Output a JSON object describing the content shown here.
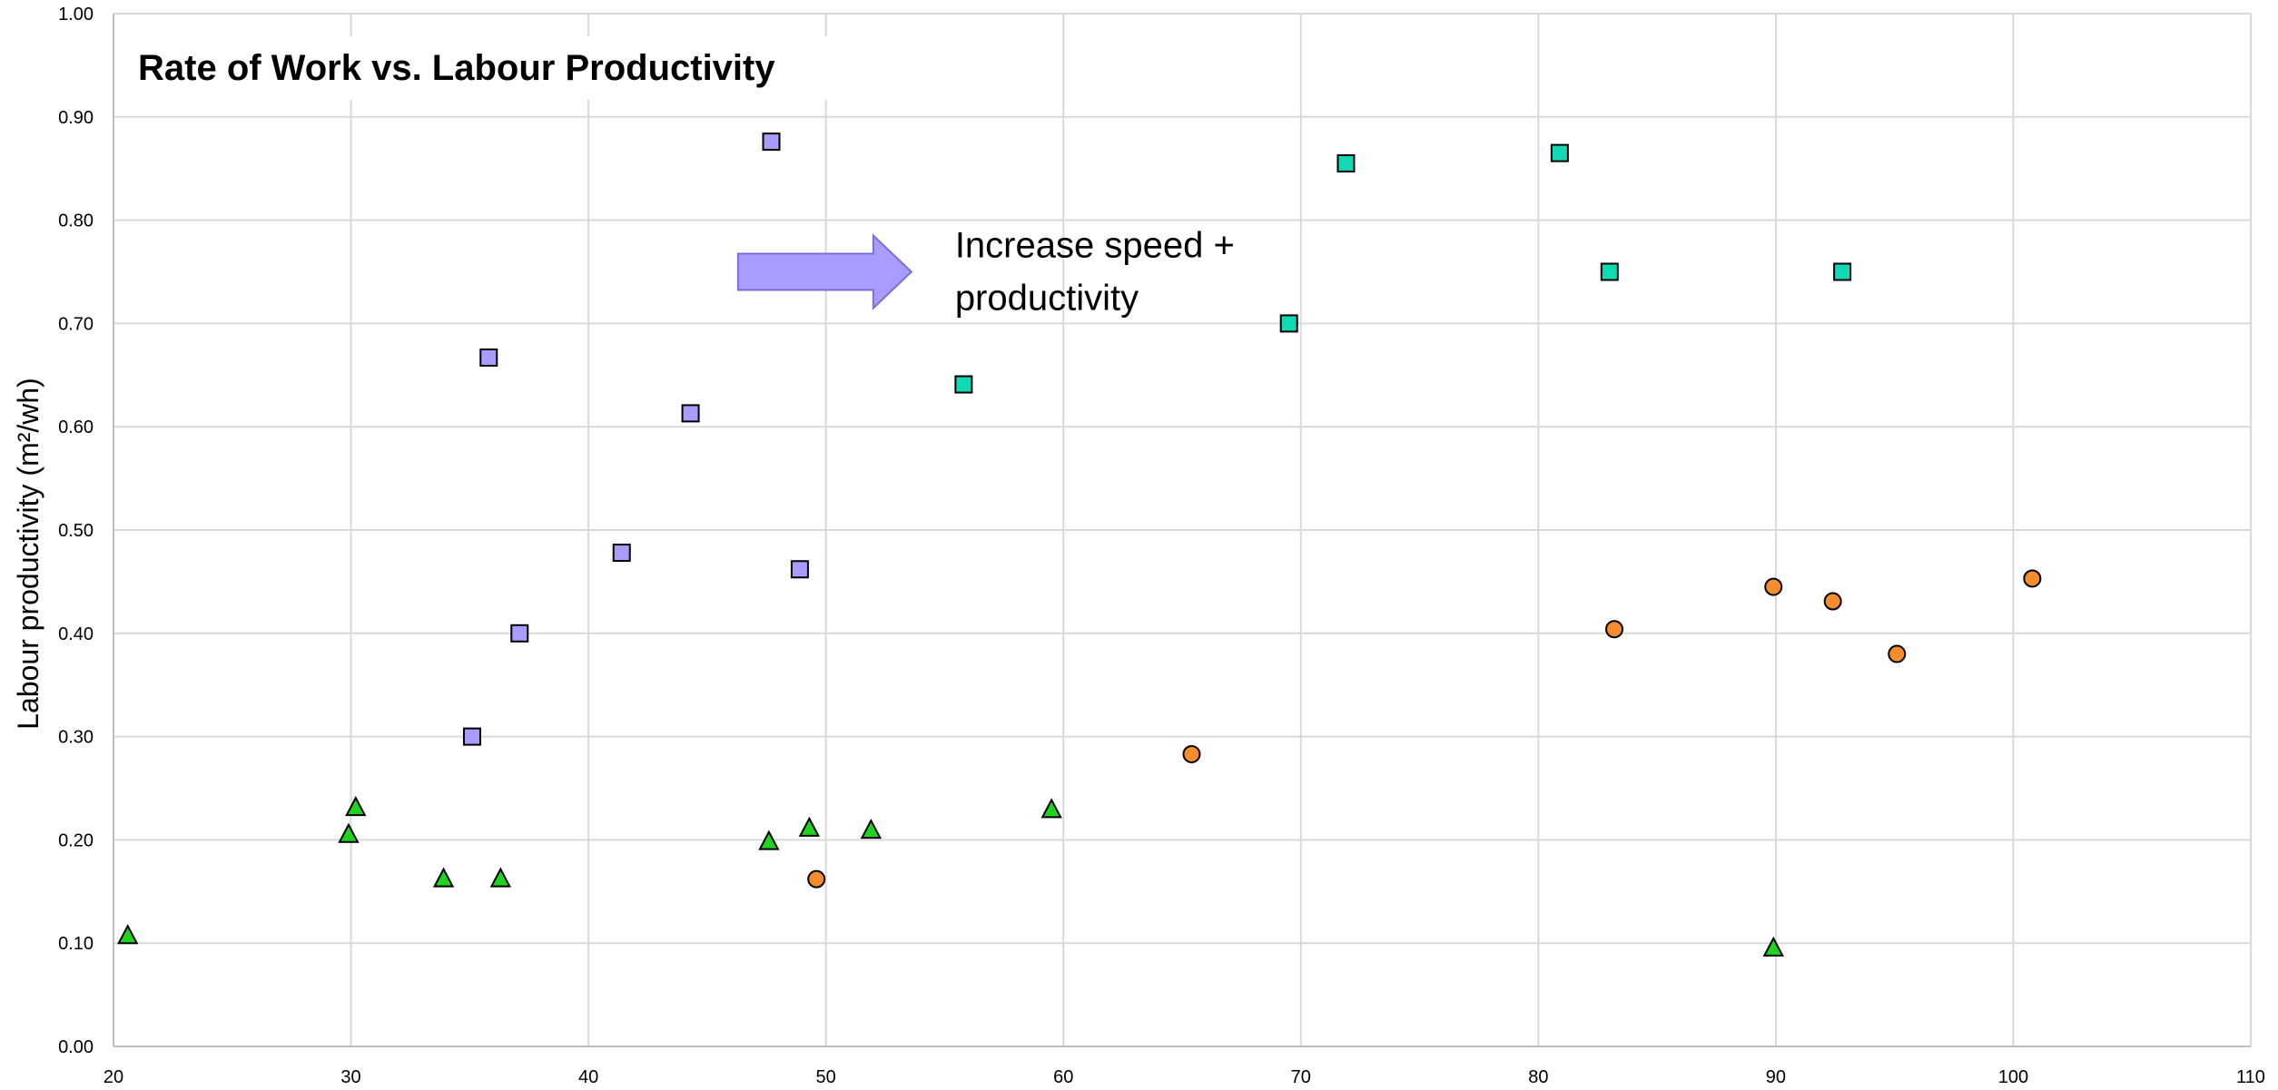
{
  "chart_data": {
    "type": "scatter",
    "title": "Rate of Work vs. Labour Productivity",
    "xlabel": "",
    "ylabel": "Labour productivity (m²/wh)",
    "xlim": [
      20,
      110
    ],
    "ylim": [
      0,
      1.0
    ],
    "x_ticks": [
      "20",
      "30",
      "40",
      "50",
      "60",
      "70",
      "80",
      "90",
      "100",
      "110"
    ],
    "y_ticks": [
      "0.00",
      "0.10",
      "0.20",
      "0.30",
      "0.40",
      "0.50",
      "0.60",
      "0.70",
      "0.80",
      "0.90",
      "1.00"
    ],
    "grid": true,
    "legend": "none",
    "annotations": [
      {
        "text_lines": [
          "Increase speed +",
          "productivity"
        ],
        "shape": "right-arrow",
        "arrow_color": "#a99cff",
        "arrow_x": [
          46.3,
          53.6
        ],
        "arrow_y": 0.75
      }
    ],
    "series": [
      {
        "marker": "square",
        "color": "#a99cff",
        "points": [
          [
            35.1,
            0.3
          ],
          [
            35.8,
            0.667
          ],
          [
            37.1,
            0.4
          ],
          [
            41.4,
            0.478
          ],
          [
            44.3,
            0.613
          ],
          [
            47.7,
            0.876
          ],
          [
            48.9,
            0.462
          ]
        ]
      },
      {
        "marker": "square",
        "color": "#10d9b4",
        "points": [
          [
            55.8,
            0.641
          ],
          [
            69.5,
            0.7
          ],
          [
            71.9,
            0.855
          ],
          [
            80.9,
            0.865
          ],
          [
            83.0,
            0.75
          ],
          [
            92.8,
            0.75
          ]
        ]
      },
      {
        "marker": "circle",
        "color": "#f58d2c",
        "points": [
          [
            49.6,
            0.162
          ],
          [
            65.4,
            0.283
          ],
          [
            83.2,
            0.404
          ],
          [
            89.9,
            0.445
          ],
          [
            92.4,
            0.431
          ],
          [
            95.1,
            0.38
          ],
          [
            100.8,
            0.453
          ]
        ]
      },
      {
        "marker": "triangle",
        "color": "#1fd41f",
        "points": [
          [
            20.6,
            0.107
          ],
          [
            29.9,
            0.205
          ],
          [
            30.2,
            0.231
          ],
          [
            33.9,
            0.162
          ],
          [
            36.3,
            0.162
          ],
          [
            47.6,
            0.198
          ],
          [
            49.3,
            0.211
          ],
          [
            51.9,
            0.209
          ],
          [
            59.5,
            0.229
          ],
          [
            89.9,
            0.095
          ]
        ]
      }
    ]
  }
}
